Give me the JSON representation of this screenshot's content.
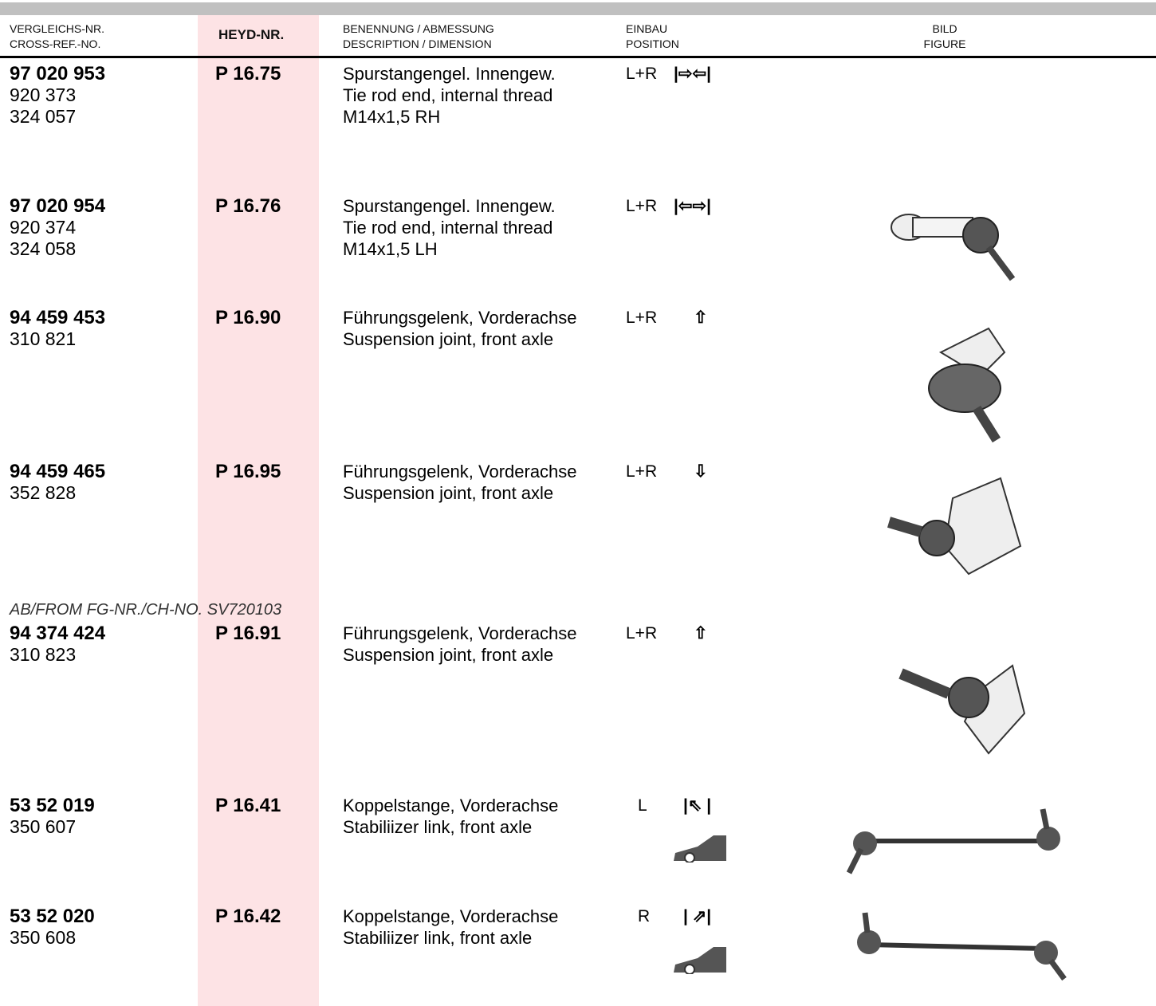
{
  "header": {
    "cross_ref": [
      "VERGLEICHS-NR.",
      "CROSS-REF.-NO."
    ],
    "heyd": "HEYD-NR.",
    "description": [
      "BENENNUNG / ABMESSUNG",
      "DESCRIPTION / DIMENSION"
    ],
    "position": [
      "EINBAU",
      "POSITION"
    ],
    "figure": [
      "BILD",
      "FIGURE"
    ]
  },
  "rows": [
    {
      "cross_ref": [
        "97 020 953",
        "920 373",
        "324 057"
      ],
      "heyd": "P 16.75",
      "description": [
        "Spurstangengel. Innengew.",
        "Tie rod end, internal thread",
        "M14x1,5 RH"
      ],
      "position": "L+R",
      "symbol": "|⇨⇦|"
    },
    {
      "cross_ref": [
        "97 020 954",
        "920 374",
        "324 058"
      ],
      "heyd": "P 16.76",
      "description": [
        "Spurstangengel. Innengew.",
        "Tie rod end, internal thread",
        "M14x1,5 LH"
      ],
      "position": "L+R",
      "symbol": "|⇦⇨|"
    },
    {
      "cross_ref": [
        "94 459 453",
        "310 821"
      ],
      "heyd": "P 16.90",
      "description": [
        "Führungsgelenk, Vorderachse",
        "Suspension joint, front axle"
      ],
      "position": "L+R",
      "symbol": "⇧"
    },
    {
      "cross_ref": [
        "94 459 465",
        "352 828"
      ],
      "heyd": "P 16.95",
      "description": [
        "Führungsgelenk, Vorderachse",
        "Suspension joint, front axle"
      ],
      "position": "L+R",
      "symbol": "⇩"
    },
    {
      "cross_ref": [
        "94 374 424",
        "310 823"
      ],
      "heyd": "P 16.91",
      "description": [
        "Führungsgelenk, Vorderachse",
        "Suspension joint, front axle"
      ],
      "position": "L+R",
      "symbol": "⇧"
    },
    {
      "cross_ref": [
        "53 52 019",
        "350 607"
      ],
      "heyd": "P 16.41",
      "description": [
        "Koppelstange, Vorderachse",
        "Stabiliizer link, front axle"
      ],
      "position": "L",
      "symbol": "|⇖ |"
    },
    {
      "cross_ref": [
        "53 52 020",
        "350 608"
      ],
      "heyd": "P 16.42",
      "description": [
        "Koppelstange, Vorderachse",
        "Stabiliizer link, front axle"
      ],
      "position": "R",
      "symbol": "| ⇗|"
    }
  ],
  "note": "AB/FROM FG-NR./CH-NO. SV720103"
}
